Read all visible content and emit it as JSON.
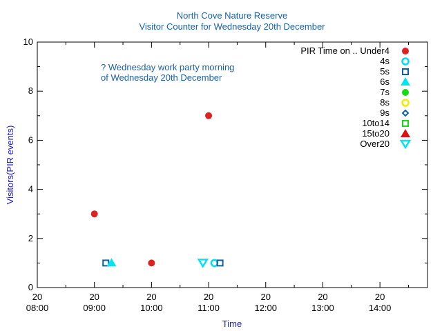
{
  "chart_data": {
    "type": "scatter",
    "title": "North Cove Nature Reserve",
    "subtitle": "Visitor Counter for Wednesday 20th December",
    "xlabel": "Time",
    "ylabel": "Visitors(PIR events)",
    "x_unit": "hour of day",
    "xlim": [
      8,
      14.833
    ],
    "ylim": [
      0,
      10
    ],
    "y_ticks": [
      0,
      2,
      4,
      6,
      8,
      10
    ],
    "x_ticks": [
      {
        "value": 8,
        "day": "20",
        "time": "08:00"
      },
      {
        "value": 9,
        "day": "20",
        "time": "09:00"
      },
      {
        "value": 10,
        "day": "20",
        "time": "10:00"
      },
      {
        "value": 11,
        "day": "20",
        "time": "11:00"
      },
      {
        "value": 12,
        "day": "20",
        "time": "12:00"
      },
      {
        "value": 13,
        "day": "20",
        "time": "13:00"
      },
      {
        "value": 14,
        "day": "20",
        "time": "14:00"
      }
    ],
    "grid": false,
    "legend_position": "top-right",
    "legend_title": "PIR Time on ..",
    "annotation": [
      "? Wednesday work party morning",
      " of Wednesday 20th December"
    ],
    "series": [
      {
        "name": "Under4",
        "marker": "circle-filled",
        "color": "#dd2222",
        "points": [
          [
            9.0,
            3
          ],
          [
            10.0,
            1
          ],
          [
            11.0,
            7
          ]
        ]
      },
      {
        "name": "4s",
        "marker": "circle-open",
        "color": "#00ddee",
        "points": [
          [
            11.1,
            1
          ]
        ]
      },
      {
        "name": "5s",
        "marker": "square-open",
        "color": "#1060a0",
        "points": [
          [
            9.2,
            1
          ],
          [
            11.2,
            1
          ]
        ]
      },
      {
        "name": "6s",
        "marker": "triangle-up-filled",
        "color": "#00e5ee",
        "points": [
          [
            9.3,
            1
          ]
        ]
      },
      {
        "name": "7s",
        "marker": "circle-filled",
        "color": "#11dd11",
        "points": []
      },
      {
        "name": "8s",
        "marker": "circle-open",
        "color": "#eeee00",
        "points": []
      },
      {
        "name": "9s",
        "marker": "diamond-open",
        "color": "#1060a0",
        "points": []
      },
      {
        "name": "10to14",
        "marker": "square-open",
        "color": "#11dd11",
        "points": []
      },
      {
        "name": "15to20",
        "marker": "triangle-up-filled",
        "color": "#dd1111",
        "points": []
      },
      {
        "name": "Over20",
        "marker": "triangle-down-open",
        "color": "#00e5ee",
        "points": [
          [
            10.9,
            1
          ]
        ]
      }
    ]
  }
}
